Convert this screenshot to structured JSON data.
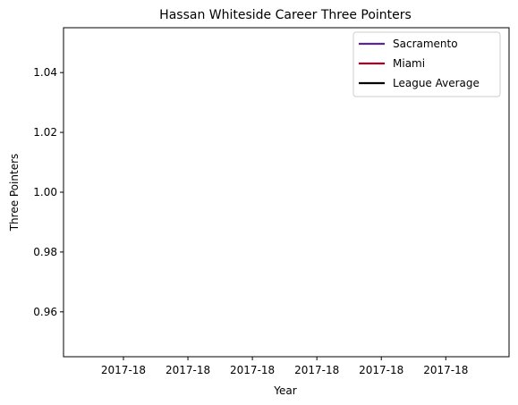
{
  "chart_data": {
    "type": "line",
    "title": "Hassan Whiteside Career Three Pointers",
    "xlabel": "Year",
    "ylabel": "Three Pointers",
    "x_tick_labels": [
      "2017-18",
      "2017-18",
      "2017-18",
      "2017-18",
      "2017-18",
      "2017-18"
    ],
    "y_ticks": [
      0.96,
      0.98,
      1.0,
      1.02,
      1.04
    ],
    "y_tick_labels": [
      "0.96",
      "0.98",
      "1.00",
      "1.02",
      "1.04"
    ],
    "ylim": [
      0.945,
      1.055
    ],
    "grid": false,
    "legend_position": "top-right",
    "series": [
      {
        "name": "Sacramento",
        "color": "#5b2a86",
        "values": []
      },
      {
        "name": "Miami",
        "color": "#98002e",
        "values": []
      },
      {
        "name": "League Average",
        "color": "#000000",
        "values": []
      }
    ]
  }
}
